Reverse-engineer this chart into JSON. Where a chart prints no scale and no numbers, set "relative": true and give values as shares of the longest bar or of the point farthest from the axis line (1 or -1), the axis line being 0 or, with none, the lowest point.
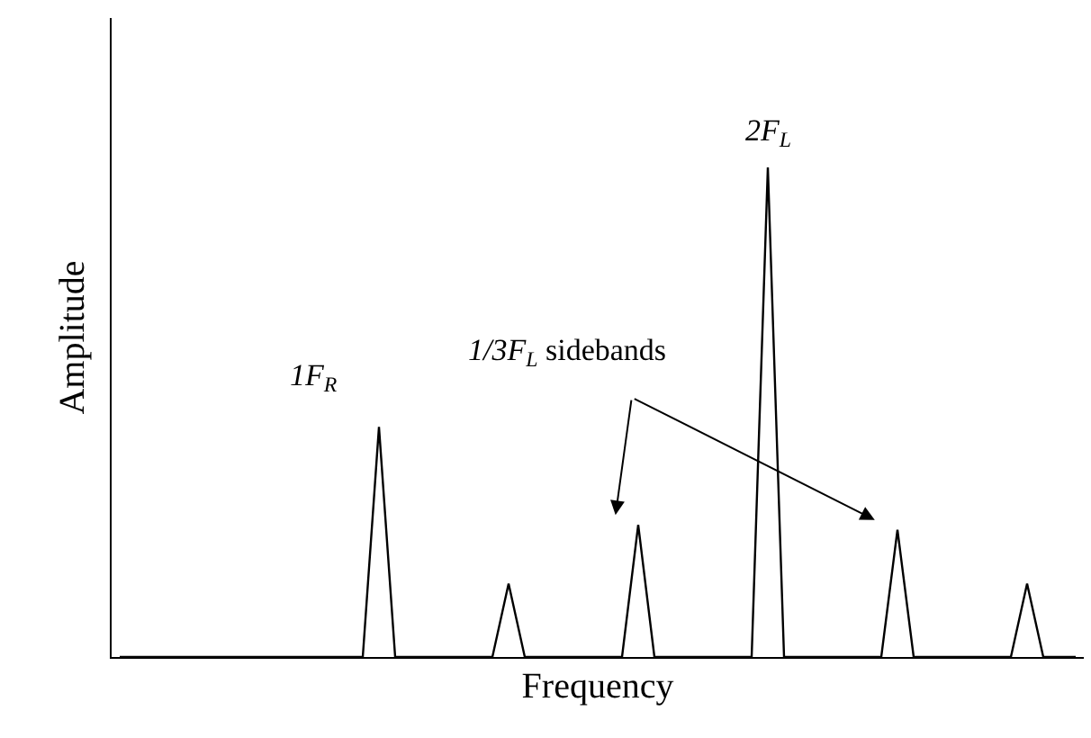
{
  "chart_data": {
    "type": "line",
    "relative": true,
    "xlabel": "Frequency",
    "ylabel": "Amplitude",
    "categories": [
      null,
      null,
      null,
      null,
      null,
      null,
      null,
      null,
      null,
      null,
      null,
      null,
      null,
      null,
      null,
      null,
      null,
      null,
      null,
      null,
      null,
      null,
      null,
      null,
      null,
      null,
      null,
      null,
      null,
      null,
      null,
      null,
      null,
      null,
      null,
      null,
      null,
      null,
      null,
      null,
      null,
      null,
      null,
      null,
      null,
      null,
      null,
      null,
      null,
      null,
      null,
      null,
      null,
      null,
      null,
      null,
      null,
      null,
      null,
      null
    ],
    "values": [
      0,
      0,
      0,
      0,
      0,
      0,
      0,
      0,
      0,
      0,
      0,
      0,
      0,
      0,
      0,
      0,
      0.47,
      0,
      0,
      0,
      0,
      0,
      0,
      0,
      0.15,
      0,
      0,
      0,
      0,
      0,
      0,
      0,
      0.27,
      0,
      0,
      0,
      0,
      0,
      0,
      0,
      1,
      0,
      0,
      0,
      0,
      0,
      0,
      0,
      0.26,
      0,
      0,
      0,
      0,
      0,
      0,
      0,
      0.15,
      0,
      0,
      0
    ],
    "color": "#000000",
    "marker": "none",
    "line_style": "solid",
    "annotations": [
      "1F$_{R}$",
      "2F$_{L}$",
      "1/3F$_{L}$ sidebands"
    ]
  }
}
